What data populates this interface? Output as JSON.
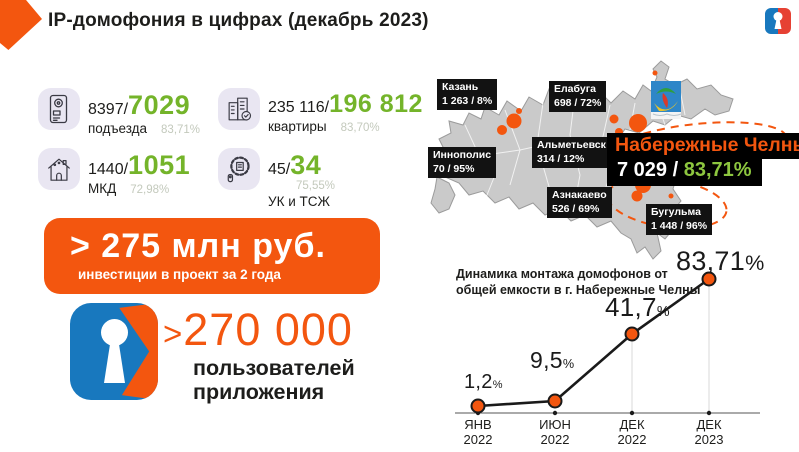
{
  "title": "IP-домофония в цифрах (декабрь 2023)",
  "stats": [
    {
      "total": "8397/",
      "value": "7029",
      "label": "подъезда",
      "percent": "83,71%"
    },
    {
      "total": "235 116/",
      "value": "196 812",
      "label": "квартиры",
      "percent": "83,70%"
    },
    {
      "total": "1440/",
      "value": "1051",
      "label": "МКД",
      "percent": "72,98%"
    },
    {
      "total": "45/",
      "value": "34",
      "label": "УК и ТСЖ",
      "percent": "75,55%"
    }
  ],
  "investment": {
    "amount": "> 275 млн руб.",
    "caption": "инвестиции в проект за 2 года"
  },
  "app_users": {
    "prefix": ">",
    "value": "270 000",
    "line1": "пользователей",
    "line2": "приложения"
  },
  "map": {
    "cities": [
      {
        "name": "Казань",
        "stats": "1 263 / 8%"
      },
      {
        "name": "Елабуга",
        "stats": "698 / 72%"
      },
      {
        "name": "Иннополис",
        "stats": "70 / 95%"
      },
      {
        "name": "Альметьевск",
        "stats": "314 / 12%"
      },
      {
        "name": "Азнакаево",
        "stats": "526 / 69%"
      },
      {
        "name": "Бугульма",
        "stats": "1 448 / 96%"
      }
    ],
    "highlight": {
      "name": "Набережные Челны",
      "count": "7 029 / ",
      "percent": "83,71%"
    }
  },
  "chart_data": {
    "type": "line",
    "title": "Динамика монтажа домофонов от общей емкости в г. Набережные Челны",
    "title_lines": [
      "Динамика монтажа домофонов от",
      "общей емкости в г. Набережные Челны"
    ],
    "categories": [
      "ЯНВ 2022",
      "ИЮН 2022",
      "ДЕК 2022",
      "ДЕК 2023"
    ],
    "values": [
      1.2,
      9.5,
      41.7,
      83.71
    ],
    "point_labels": [
      "1,2",
      "9,5",
      "41,7",
      "83,71"
    ],
    "unit": "%",
    "ylim": [
      0,
      100
    ],
    "legend": "none",
    "grid": "droplines-under-dec-points",
    "line_color": "#1a1a1a",
    "point_color": "#F3560F"
  },
  "colors": {
    "accent_orange": "#F3560F",
    "accent_green": "#74B42A",
    "highlight_green": "#8DC63F",
    "muted_percent": "#C3C9BC",
    "label_bg": "#121212",
    "map_fill": "#CACACA",
    "logo_blue": "#1878BE",
    "logo_red": "#E64133"
  }
}
